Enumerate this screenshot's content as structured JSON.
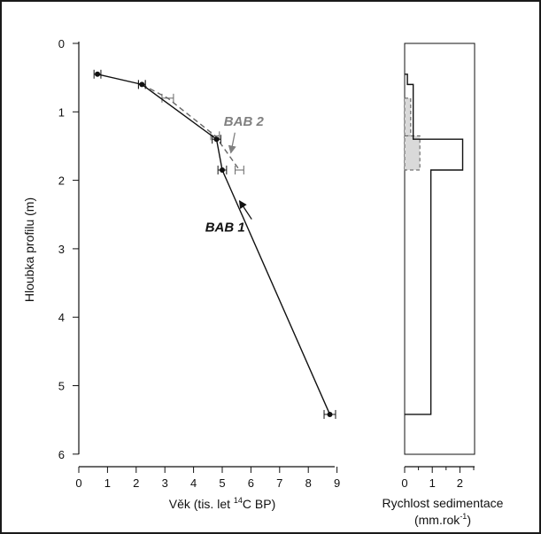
{
  "chart_data": [
    {
      "type": "line",
      "xlabel": "Věk (tis. let ",
      "xlabel_sup": "14",
      "xlabel_tail": "C BP)",
      "ylabel": "Hloubka profilu (m)",
      "xlim": [
        0,
        9
      ],
      "ylim": [
        0,
        6
      ],
      "y_inverted": true,
      "x_ticks": [
        0,
        1,
        2,
        3,
        4,
        5,
        6,
        7,
        8,
        9
      ],
      "y_ticks": [
        0,
        1,
        2,
        3,
        4,
        5,
        6
      ],
      "series": [
        {
          "name": "BAB 1",
          "style": "solid",
          "color": "#111111",
          "points": [
            {
              "x": 0.65,
              "y": 0.45,
              "xerr": 0.12
            },
            {
              "x": 2.2,
              "y": 0.6,
              "xerr": 0.12
            },
            {
              "x": 4.8,
              "y": 1.4,
              "xerr": 0.15
            },
            {
              "x": 5.0,
              "y": 1.85,
              "xerr": 0.15
            },
            {
              "x": 8.75,
              "y": 5.42,
              "xerr": 0.2
            }
          ]
        },
        {
          "name": "BAB 2",
          "style": "dashed",
          "color": "#666666",
          "points": [
            {
              "x": 2.2,
              "y": 0.6,
              "xerr": 0.12
            },
            {
              "x": 3.1,
              "y": 0.8,
              "xerr": 0.2
            },
            {
              "x": 4.75,
              "y": 1.35,
              "xerr": 0.15
            },
            {
              "x": 5.6,
              "y": 1.85,
              "xerr": 0.15
            }
          ]
        }
      ],
      "annotations": [
        {
          "text": "BAB 2",
          "color": "#808080",
          "x": 5.75,
          "y": 1.2,
          "arrow_to": [
            5.3,
            1.6
          ]
        },
        {
          "text": "BAB 1",
          "color": "#111111",
          "x": 5.1,
          "y": 2.75,
          "arrow_to": [
            5.6,
            2.3
          ]
        }
      ]
    },
    {
      "type": "area",
      "xlabel": "Rychlost sedimentace",
      "xlabel_line2": "(mm.rok",
      "xlabel_line2_sup": "-1",
      "xlabel_line2_tail": ")",
      "xlim": [
        0,
        2.5
      ],
      "ylim": [
        0,
        6
      ],
      "y_inverted": true,
      "x_ticks": [
        0,
        1,
        2
      ],
      "series": [
        {
          "name": "BAB 1",
          "style": "solid",
          "steps": [
            {
              "from": 0.45,
              "to": 0.6,
              "rate": 0.1
            },
            {
              "from": 0.6,
              "to": 1.4,
              "rate": 0.31
            },
            {
              "from": 1.4,
              "to": 1.85,
              "rate": 2.1
            },
            {
              "from": 1.85,
              "to": 5.42,
              "rate": 0.95
            }
          ]
        },
        {
          "name": "BAB 2",
          "style": "dashed",
          "fill": "#d9d9d9",
          "steps": [
            {
              "from": 0.8,
              "to": 1.35,
              "rate": 0.22
            },
            {
              "from": 1.35,
              "to": 1.85,
              "rate": 0.55
            }
          ]
        }
      ]
    }
  ]
}
